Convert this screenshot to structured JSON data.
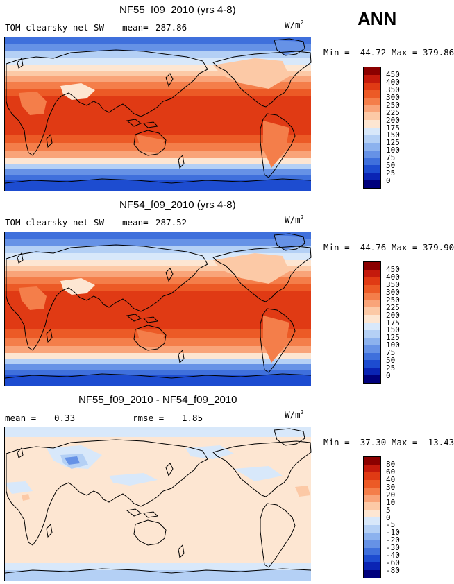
{
  "season": "ANN",
  "panels": [
    {
      "title": "NF55_f09_2010 (yrs 4-8)",
      "variable": "TOM clearsky net SW",
      "stat_label": "mean=",
      "stat_value": "287.86",
      "units": "W/m",
      "units_exp": "2",
      "min_label": "Min =",
      "min_value": "44.72",
      "max_label": "Max =",
      "max_value": "379.86",
      "levels": [
        "450",
        "400",
        "350",
        "300",
        "250",
        "225",
        "200",
        "175",
        "150",
        "125",
        "100",
        "75",
        "50",
        "25",
        "0"
      ]
    },
    {
      "title": "NF54_f09_2010 (yrs 4-8)",
      "variable": "TOM clearsky net SW",
      "stat_label": "mean=",
      "stat_value": "287.52",
      "units": "W/m",
      "units_exp": "2",
      "min_label": "Min =",
      "min_value": "44.76",
      "max_label": "Max =",
      "max_value": "379.90",
      "levels": [
        "450",
        "400",
        "350",
        "300",
        "250",
        "225",
        "200",
        "175",
        "150",
        "125",
        "100",
        "75",
        "50",
        "25",
        "0"
      ]
    },
    {
      "title": "NF55_f09_2010 - NF54_f09_2010",
      "stat_label": "mean =",
      "stat_value": "0.33",
      "stat2_label": "rmse =",
      "stat2_value": "1.85",
      "units": "W/m",
      "units_exp": "2",
      "min_label": "Min =",
      "min_value": "-37.30",
      "max_label": "Max =",
      "max_value": "13.43",
      "levels": [
        "80",
        "60",
        "40",
        "30",
        "20",
        "10",
        "5",
        "0",
        "-5",
        "-10",
        "-20",
        "-30",
        "-40",
        "-60",
        "-80"
      ]
    }
  ],
  "colors": {
    "scale": [
      "#8b0000",
      "#c41a0c",
      "#e03a14",
      "#ec5a26",
      "#f47e4a",
      "#f9a479",
      "#fcc9a6",
      "#fde6d2",
      "#d8e8fa",
      "#b4d0f5",
      "#8cb2ee",
      "#6692e6",
      "#3f70dc",
      "#1d4cd0",
      "#0a24b4",
      "#00007c"
    ],
    "coast": "#000000"
  }
}
